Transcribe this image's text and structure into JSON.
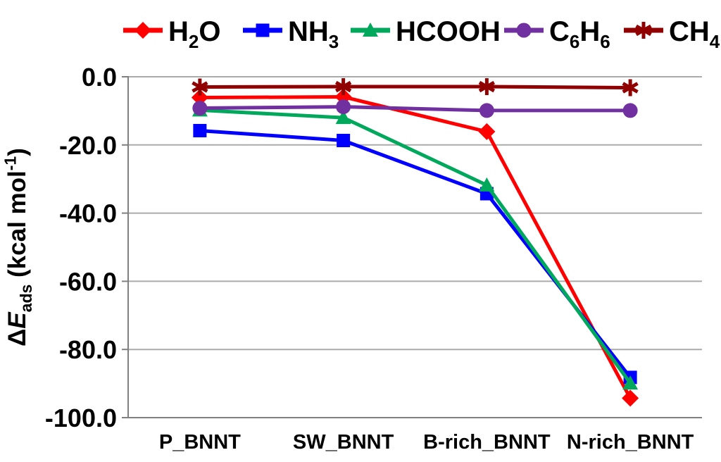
{
  "figure": {
    "background": "#FFFFFF"
  },
  "chart_data": {
    "type": "line",
    "title": "",
    "categories": [
      "P_BNNT",
      "SW_BNNT",
      "B-rich_BNNT",
      "N-rich_BNNT"
    ],
    "series": [
      {
        "name": "H2O",
        "label": [
          {
            "t": "H"
          },
          {
            "t": "2",
            "s": "sub"
          },
          {
            "t": "O"
          }
        ],
        "color": "#FF0000",
        "marker": "diamond",
        "values": [
          -6.1,
          -5.9,
          -16.1,
          -94.3
        ]
      },
      {
        "name": "NH3",
        "label": [
          {
            "t": "NH"
          },
          {
            "t": "3",
            "s": "sub"
          }
        ],
        "color": "#0000FF",
        "marker": "square",
        "values": [
          -15.8,
          -18.7,
          -34.3,
          -88.2
        ]
      },
      {
        "name": "HCOOH",
        "label": [
          {
            "t": "HCOOH"
          }
        ],
        "color": "#00A85C",
        "marker": "triangle",
        "values": [
          -9.8,
          -12.0,
          -31.8,
          -89.9
        ]
      },
      {
        "name": "C6H6",
        "label": [
          {
            "t": "C"
          },
          {
            "t": "6",
            "s": "sub"
          },
          {
            "t": "H"
          },
          {
            "t": "6",
            "s": "sub"
          }
        ],
        "color": "#7030A0",
        "marker": "circle",
        "values": [
          -9.2,
          -8.8,
          -9.9,
          -9.9
        ]
      },
      {
        "name": "CH4",
        "label": [
          {
            "t": "CH"
          },
          {
            "t": "4",
            "s": "sub"
          }
        ],
        "color": "#900000",
        "marker": "asterisk",
        "values": [
          -3.0,
          -2.9,
          -2.9,
          -3.2
        ]
      }
    ],
    "xlabel": "",
    "ylabel": "ΔE_ads (kcal mol-1)",
    "ylabel_segments": [
      {
        "t": "Δ"
      },
      {
        "t": "E",
        "s": "i"
      },
      {
        "t": "ads",
        "s": "sub"
      },
      {
        "t": " (kcal mol"
      },
      {
        "t": "-1",
        "s": "sup"
      },
      {
        "t": ")"
      }
    ],
    "yticks": [
      {
        "label": "0.0",
        "value": 0
      },
      {
        "label": "-20.0",
        "value": -20
      },
      {
        "label": "-40.0",
        "value": -40
      },
      {
        "label": "-60.0",
        "value": -60
      },
      {
        "label": "-80.0",
        "value": -80
      },
      {
        "label": "-100.0",
        "value": -100
      }
    ],
    "ylim": [
      -100,
      0
    ],
    "grid": true,
    "legend_position": "top",
    "style": {
      "grid_color": "#ABABAB",
      "axis_color": "#808080",
      "text_color": "#000000",
      "line_width": 5
    }
  }
}
